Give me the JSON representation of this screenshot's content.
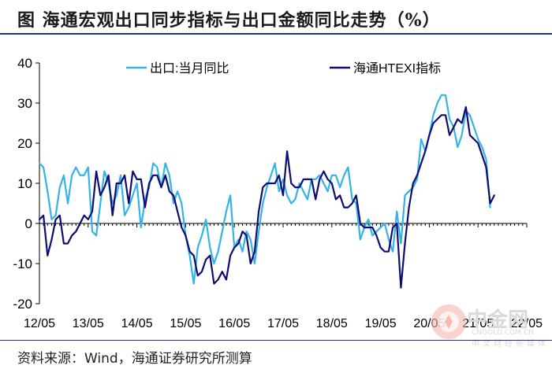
{
  "title": "图   海通宏观出口同步指标与出口金额同比走势（%）",
  "source": "资料来源：Wind，海通证券研究所测算",
  "watermark": {
    "name": "中金网",
    "domain": "CNGOLD.COM.CN",
    "subtitle": "中文财经新媒体"
  },
  "colors": {
    "series_light": "#33b3e6",
    "series_dark": "#0d0d73",
    "axis": "#000000",
    "frame": "#1f3864"
  },
  "chart_data": {
    "type": "line",
    "title": "海通宏观出口同步指标与出口金额同比走势（%）",
    "xlabel": "",
    "ylabel": "",
    "x_start": "2012-05",
    "x_end": "2022-05",
    "ylim": [
      -20,
      40
    ],
    "yticks": [
      -20,
      -10,
      0,
      10,
      20,
      30,
      40
    ],
    "xtick_labels": [
      "12/05",
      "13/05",
      "14/05",
      "15/05",
      "16/05",
      "17/05",
      "18/05",
      "19/05",
      "20/05",
      "21/05",
      "22/05"
    ],
    "grid": false,
    "legend": "top",
    "series": [
      {
        "name": "出口:当月同比",
        "color": "#33b3e6",
        "values": [
          [
            0,
            15
          ],
          [
            1,
            14
          ],
          [
            2,
            8
          ],
          [
            3,
            1
          ],
          [
            4,
            2
          ],
          [
            5,
            9
          ],
          [
            6,
            12
          ],
          [
            7,
            5
          ],
          [
            8,
            12
          ],
          [
            9,
            14
          ],
          [
            10,
            12
          ],
          [
            11,
            12
          ],
          [
            12,
            14
          ],
          [
            13,
            -2
          ],
          [
            14,
            -3
          ],
          [
            15,
            5
          ],
          [
            16,
            13
          ],
          [
            17,
            10
          ],
          [
            18,
            5
          ],
          [
            19,
            7
          ],
          [
            20,
            12
          ],
          [
            21,
            2
          ],
          [
            22,
            4
          ],
          [
            23,
            7
          ],
          [
            24,
            10
          ],
          [
            25,
            -1
          ],
          [
            26,
            6
          ],
          [
            27,
            9
          ],
          [
            28,
            15
          ],
          [
            29,
            14
          ],
          [
            30,
            9
          ],
          [
            31,
            15
          ],
          [
            32,
            12
          ],
          [
            33,
            5
          ],
          [
            34,
            8
          ],
          [
            35,
            5
          ],
          [
            36,
            -3
          ],
          [
            37,
            -8
          ],
          [
            38,
            -15
          ],
          [
            39,
            -6
          ],
          [
            40,
            -3
          ],
          [
            41,
            1
          ],
          [
            42,
            -6
          ],
          [
            43,
            -10
          ],
          [
            44,
            -7
          ],
          [
            45,
            -2
          ],
          [
            46,
            3
          ],
          [
            47,
            7
          ],
          [
            48,
            -6
          ],
          [
            49,
            -4
          ],
          [
            50,
            -7
          ],
          [
            51,
            -2
          ],
          [
            52,
            -4
          ],
          [
            53,
            -10
          ],
          [
            54,
            -2
          ],
          [
            55,
            5
          ],
          [
            56,
            9
          ],
          [
            57,
            12
          ],
          [
            58,
            15
          ],
          [
            59,
            8
          ],
          [
            60,
            11
          ],
          [
            61,
            7
          ],
          [
            62,
            5
          ],
          [
            63,
            6
          ],
          [
            64,
            10
          ],
          [
            65,
            8
          ],
          [
            66,
            6
          ],
          [
            67,
            11
          ],
          [
            68,
            11
          ],
          [
            69,
            12
          ],
          [
            70,
            10
          ],
          [
            71,
            8
          ],
          [
            72,
            12
          ],
          [
            73,
            12
          ],
          [
            74,
            9
          ],
          [
            75,
            12
          ],
          [
            76,
            14
          ],
          [
            77,
            6
          ],
          [
            78,
            5
          ],
          [
            79,
            -4
          ],
          [
            80,
            -1
          ],
          [
            81,
            1
          ],
          [
            82,
            -3
          ],
          [
            83,
            -2
          ],
          [
            84,
            -1
          ],
          [
            85,
            0
          ],
          [
            86,
            -4
          ],
          [
            87,
            -7
          ],
          [
            88,
            3
          ],
          [
            89,
            -5
          ],
          [
            90,
            7
          ],
          [
            91,
            8
          ],
          [
            92,
            9
          ],
          [
            93,
            11
          ],
          [
            94,
            21
          ],
          [
            95,
            18
          ],
          [
            96,
            22
          ],
          [
            97,
            27
          ],
          [
            98,
            30
          ],
          [
            99,
            32
          ],
          [
            100,
            32
          ],
          [
            101,
            26
          ],
          [
            102,
            24
          ],
          [
            103,
            19
          ],
          [
            104,
            22
          ],
          [
            105,
            28
          ],
          [
            106,
            27
          ],
          [
            107,
            24
          ],
          [
            108,
            21
          ],
          [
            109,
            19
          ],
          [
            110,
            16
          ],
          [
            111,
            4
          ]
        ]
      },
      {
        "name": "海通HTEXI指标",
        "color": "#0d0d73",
        "values": [
          [
            0,
            1
          ],
          [
            1,
            2
          ],
          [
            2,
            -8
          ],
          [
            3,
            -4
          ],
          [
            4,
            1
          ],
          [
            5,
            2
          ],
          [
            6,
            -5
          ],
          [
            7,
            -5
          ],
          [
            8,
            -3
          ],
          [
            9,
            -2
          ],
          [
            10,
            0
          ],
          [
            11,
            2
          ],
          [
            12,
            1
          ],
          [
            13,
            3
          ],
          [
            14,
            13
          ],
          [
            15,
            7
          ],
          [
            16,
            9
          ],
          [
            17,
            12
          ],
          [
            18,
            2
          ],
          [
            19,
            10
          ],
          [
            20,
            10
          ],
          [
            21,
            12
          ],
          [
            22,
            5
          ],
          [
            23,
            13
          ],
          [
            24,
            11
          ],
          [
            25,
            11
          ],
          [
            26,
            4
          ],
          [
            27,
            10
          ],
          [
            28,
            12
          ],
          [
            29,
            12
          ],
          [
            30,
            9
          ],
          [
            31,
            12
          ],
          [
            32,
            8
          ],
          [
            33,
            7
          ],
          [
            34,
            3
          ],
          [
            35,
            -1
          ],
          [
            36,
            -3
          ],
          [
            37,
            -7
          ],
          [
            38,
            -8
          ],
          [
            39,
            -13
          ],
          [
            40,
            -12
          ],
          [
            41,
            -9
          ],
          [
            42,
            -8
          ],
          [
            43,
            -15
          ],
          [
            44,
            -14
          ],
          [
            45,
            -12
          ],
          [
            46,
            -14
          ],
          [
            47,
            -8
          ],
          [
            48,
            -6
          ],
          [
            49,
            -5
          ],
          [
            50,
            -2
          ],
          [
            51,
            -3
          ],
          [
            52,
            -10
          ],
          [
            53,
            -7
          ],
          [
            54,
            3
          ],
          [
            55,
            9
          ],
          [
            56,
            10
          ],
          [
            57,
            10
          ],
          [
            58,
            10
          ],
          [
            59,
            12
          ],
          [
            60,
            7
          ],
          [
            61,
            18
          ],
          [
            62,
            10
          ],
          [
            63,
            9
          ],
          [
            64,
            9
          ],
          [
            65,
            11
          ],
          [
            66,
            11
          ],
          [
            67,
            11
          ],
          [
            68,
            6
          ],
          [
            69,
            11
          ],
          [
            70,
            13
          ],
          [
            71,
            11
          ],
          [
            72,
            10
          ],
          [
            73,
            6
          ],
          [
            74,
            7
          ],
          [
            75,
            4
          ],
          [
            76,
            4
          ],
          [
            77,
            5
          ],
          [
            78,
            7
          ],
          [
            79,
            0
          ],
          [
            80,
            -1
          ],
          [
            81,
            -1
          ],
          [
            82,
            -1
          ],
          [
            83,
            -3
          ],
          [
            84,
            -6
          ],
          [
            85,
            -7
          ],
          [
            86,
            -7
          ],
          [
            87,
            -1
          ],
          [
            88,
            0
          ],
          [
            89,
            -16
          ],
          [
            90,
            -5
          ],
          [
            91,
            4
          ],
          [
            92,
            10
          ],
          [
            93,
            12
          ],
          [
            94,
            15
          ],
          [
            95,
            18
          ],
          [
            96,
            22
          ],
          [
            97,
            25
          ],
          [
            98,
            26
          ],
          [
            99,
            27
          ],
          [
            100,
            27
          ],
          [
            101,
            22
          ],
          [
            102,
            24
          ],
          [
            103,
            26
          ],
          [
            104,
            25
          ],
          [
            105,
            29
          ],
          [
            106,
            22
          ],
          [
            107,
            21
          ],
          [
            108,
            20
          ],
          [
            109,
            17
          ],
          [
            110,
            14
          ],
          [
            111,
            5
          ],
          [
            112,
            7
          ]
        ]
      }
    ]
  }
}
